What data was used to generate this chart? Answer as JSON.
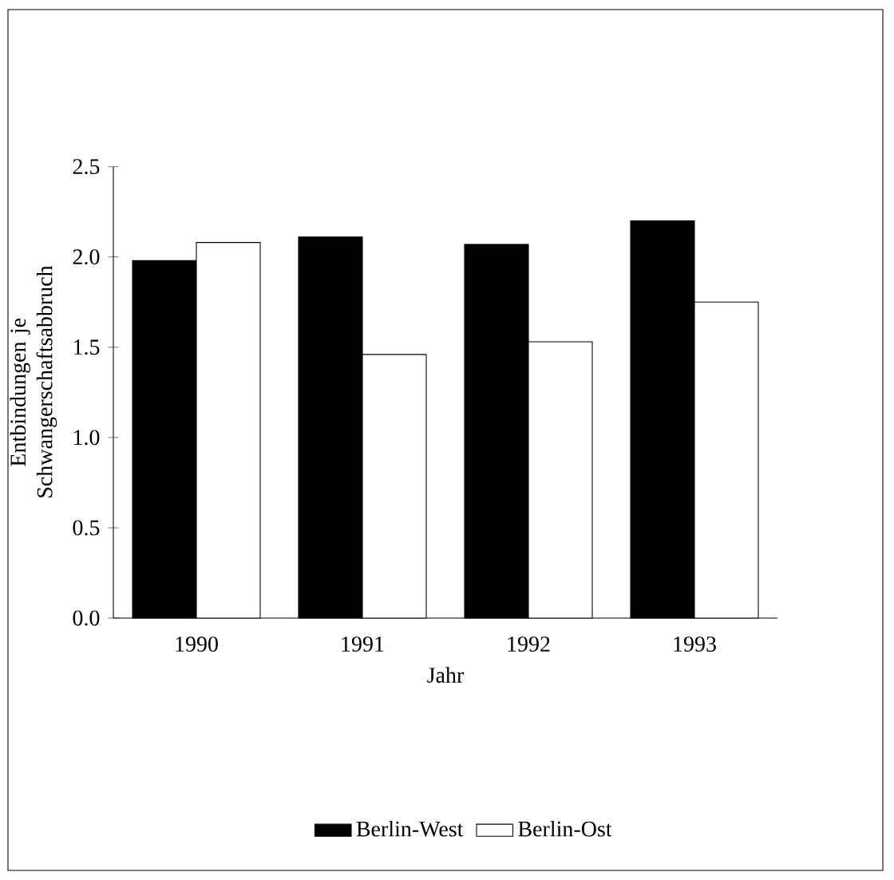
{
  "chart_data": {
    "type": "bar",
    "xlabel": "Jahr",
    "ylabel": "Entbindungen je Schwangerschaftsabbruch",
    "categories": [
      "1990",
      "1991",
      "1992",
      "1993"
    ],
    "series": [
      {
        "name": "Berlin-West",
        "color": "#000000",
        "values": [
          1.98,
          2.11,
          2.07,
          2.2
        ]
      },
      {
        "name": "Berlin-Ost",
        "color": "#ffffff",
        "values": [
          2.08,
          1.46,
          1.53,
          1.75
        ]
      }
    ],
    "ylim": [
      0,
      2.5
    ],
    "yticks": [
      {
        "value": 0,
        "label": "0.0"
      },
      {
        "value": 0.5,
        "label": "0.5"
      },
      {
        "value": 1,
        "label": "1.0"
      },
      {
        "value": 1.5,
        "label": "1.5"
      },
      {
        "value": 2,
        "label": "2.0"
      },
      {
        "value": 2.5,
        "label": "2.5"
      }
    ],
    "legend": "bottom"
  }
}
